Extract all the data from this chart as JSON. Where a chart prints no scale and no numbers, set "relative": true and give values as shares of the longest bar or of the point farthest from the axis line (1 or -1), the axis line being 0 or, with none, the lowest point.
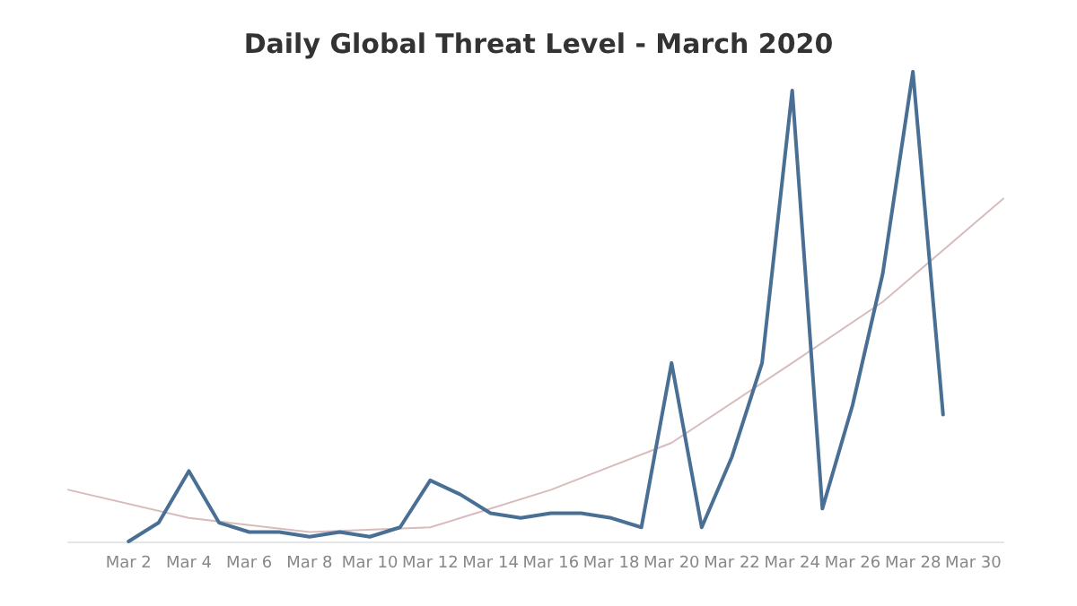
{
  "chart_data": {
    "type": "line",
    "title": "Daily Global Threat Level - March 2020",
    "relative": true,
    "marker": "none",
    "xlim": [
      "--02-29",
      "--03-31"
    ],
    "xticks": [
      {
        "value": "--03-02",
        "label": "Mar 2"
      },
      {
        "value": "--03-04",
        "label": "Mar 4"
      },
      {
        "value": "--03-06",
        "label": "Mar 6"
      },
      {
        "value": "--03-08",
        "label": "Mar 8"
      },
      {
        "value": "--03-10",
        "label": "Mar 10"
      },
      {
        "value": "--03-12",
        "label": "Mar 12"
      },
      {
        "value": "--03-14",
        "label": "Mar 14"
      },
      {
        "value": "--03-16",
        "label": "Mar 16"
      },
      {
        "value": "--03-18",
        "label": "Mar 18"
      },
      {
        "value": "--03-20",
        "label": "Mar 20"
      },
      {
        "value": "--03-22",
        "label": "Mar 22"
      },
      {
        "value": "--03-24",
        "label": "Mar 24"
      },
      {
        "value": "--03-26",
        "label": "Mar 26"
      },
      {
        "value": "--03-28",
        "label": "Mar 28"
      },
      {
        "value": "--03-30",
        "label": "Mar 30"
      }
    ],
    "series": [
      {
        "color": "#d8bcbc",
        "x": [
          "--02-29",
          "--03-04",
          "--03-08",
          "--03-12",
          "--03-16",
          "--03-20",
          "--03-24",
          "--03-27",
          "--03-31"
        ],
        "values": [
          0.11,
          0.05,
          0.02,
          0.03,
          0.11,
          0.21,
          0.38,
          0.51,
          0.73
        ]
      },
      {
        "color": "#4a6f94",
        "x": [
          "--03-02",
          "--03-03",
          "--03-04",
          "--03-05",
          "--03-06",
          "--03-07",
          "--03-08",
          "--03-09",
          "--03-10",
          "--03-11",
          "--03-12",
          "--03-13",
          "--03-14",
          "--03-15",
          "--03-16",
          "--03-17",
          "--03-18",
          "--03-19",
          "--03-20",
          "--03-21",
          "--03-22",
          "--03-23",
          "--03-24",
          "--03-25",
          "--03-26",
          "--03-27",
          "--03-28",
          "--03-29"
        ],
        "values": [
          0.0,
          0.04,
          0.15,
          0.04,
          0.02,
          0.02,
          0.01,
          0.02,
          0.01,
          0.03,
          0.13,
          0.1,
          0.06,
          0.05,
          0.06,
          0.06,
          0.05,
          0.03,
          0.38,
          0.03,
          0.18,
          0.38,
          0.96,
          0.07,
          0.29,
          0.57,
          1,
          0.27
        ]
      }
    ]
  }
}
